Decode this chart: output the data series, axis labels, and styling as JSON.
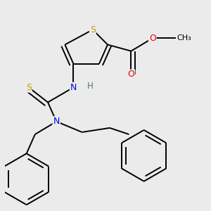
{
  "background_color": "#ebebeb",
  "atom_colors": {
    "S": "#b8a000",
    "N": "#0000ee",
    "O": "#ee0000",
    "H": "#507878",
    "C": "#000000"
  },
  "bond_color": "#000000",
  "bond_lw": 1.4
}
